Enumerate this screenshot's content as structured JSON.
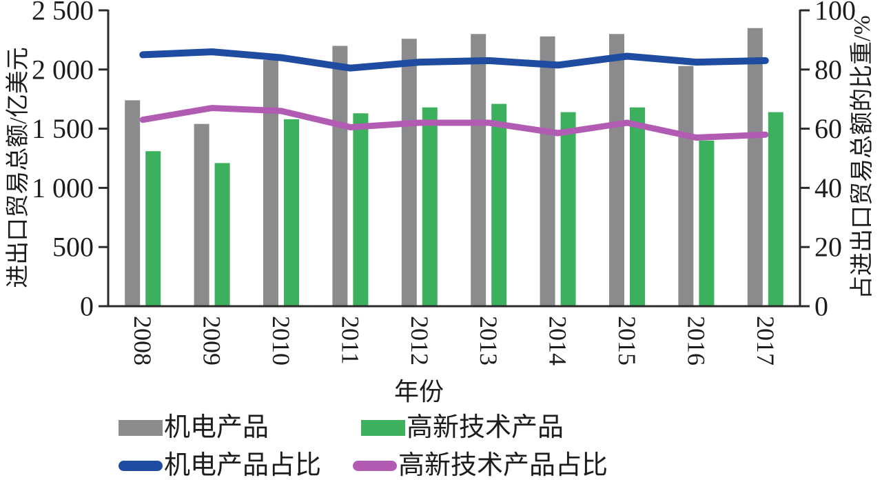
{
  "chart_data": {
    "type": "bar",
    "subtype": "bar-line-combo-dual-axis",
    "title": "",
    "xlabel": "年份",
    "categories": [
      "2008",
      "2009",
      "2010",
      "2011",
      "2012",
      "2013",
      "2014",
      "2015",
      "2016",
      "2017"
    ],
    "left_axis": {
      "label": "进出口贸易总额/亿美元",
      "min": 0,
      "max": 2500,
      "tick_step": 500,
      "tick_labels": [
        "2 500",
        "2 000",
        "1 500",
        "1 000",
        "500",
        "0"
      ]
    },
    "right_axis": {
      "label": "占进出口贸易总额的比重/%",
      "min": 0,
      "max": 100,
      "tick_step": 20,
      "tick_labels": [
        "100",
        "80",
        "60",
        "40",
        "20",
        "0"
      ]
    },
    "bar_series": [
      {
        "name": "机电产品",
        "axis": "left",
        "color": "#8b8b8d",
        "values": [
          1740,
          1540,
          2080,
          2200,
          2260,
          2300,
          2280,
          2300,
          2030,
          2350
        ]
      },
      {
        "name": "高新技术产品",
        "axis": "left",
        "color": "#3db05e",
        "values": [
          1310,
          1210,
          1580,
          1630,
          1680,
          1710,
          1640,
          1680,
          1400,
          1640
        ]
      }
    ],
    "line_series": [
      {
        "name": "机电产品占比",
        "axis": "right",
        "color": "#1f4ba0",
        "values": [
          85,
          86,
          84,
          80.5,
          82.5,
          83,
          81.5,
          84.5,
          82.5,
          83
        ]
      },
      {
        "name": "高新技术产品占比",
        "axis": "right",
        "color": "#b25bb3",
        "values": [
          63,
          67,
          66,
          60.5,
          62,
          62,
          58.5,
          62,
          57,
          58
        ]
      }
    ],
    "legend_position": "bottom",
    "grid": false,
    "axis_color": "#2a2a2a",
    "text_color": "#1c1c1c"
  }
}
